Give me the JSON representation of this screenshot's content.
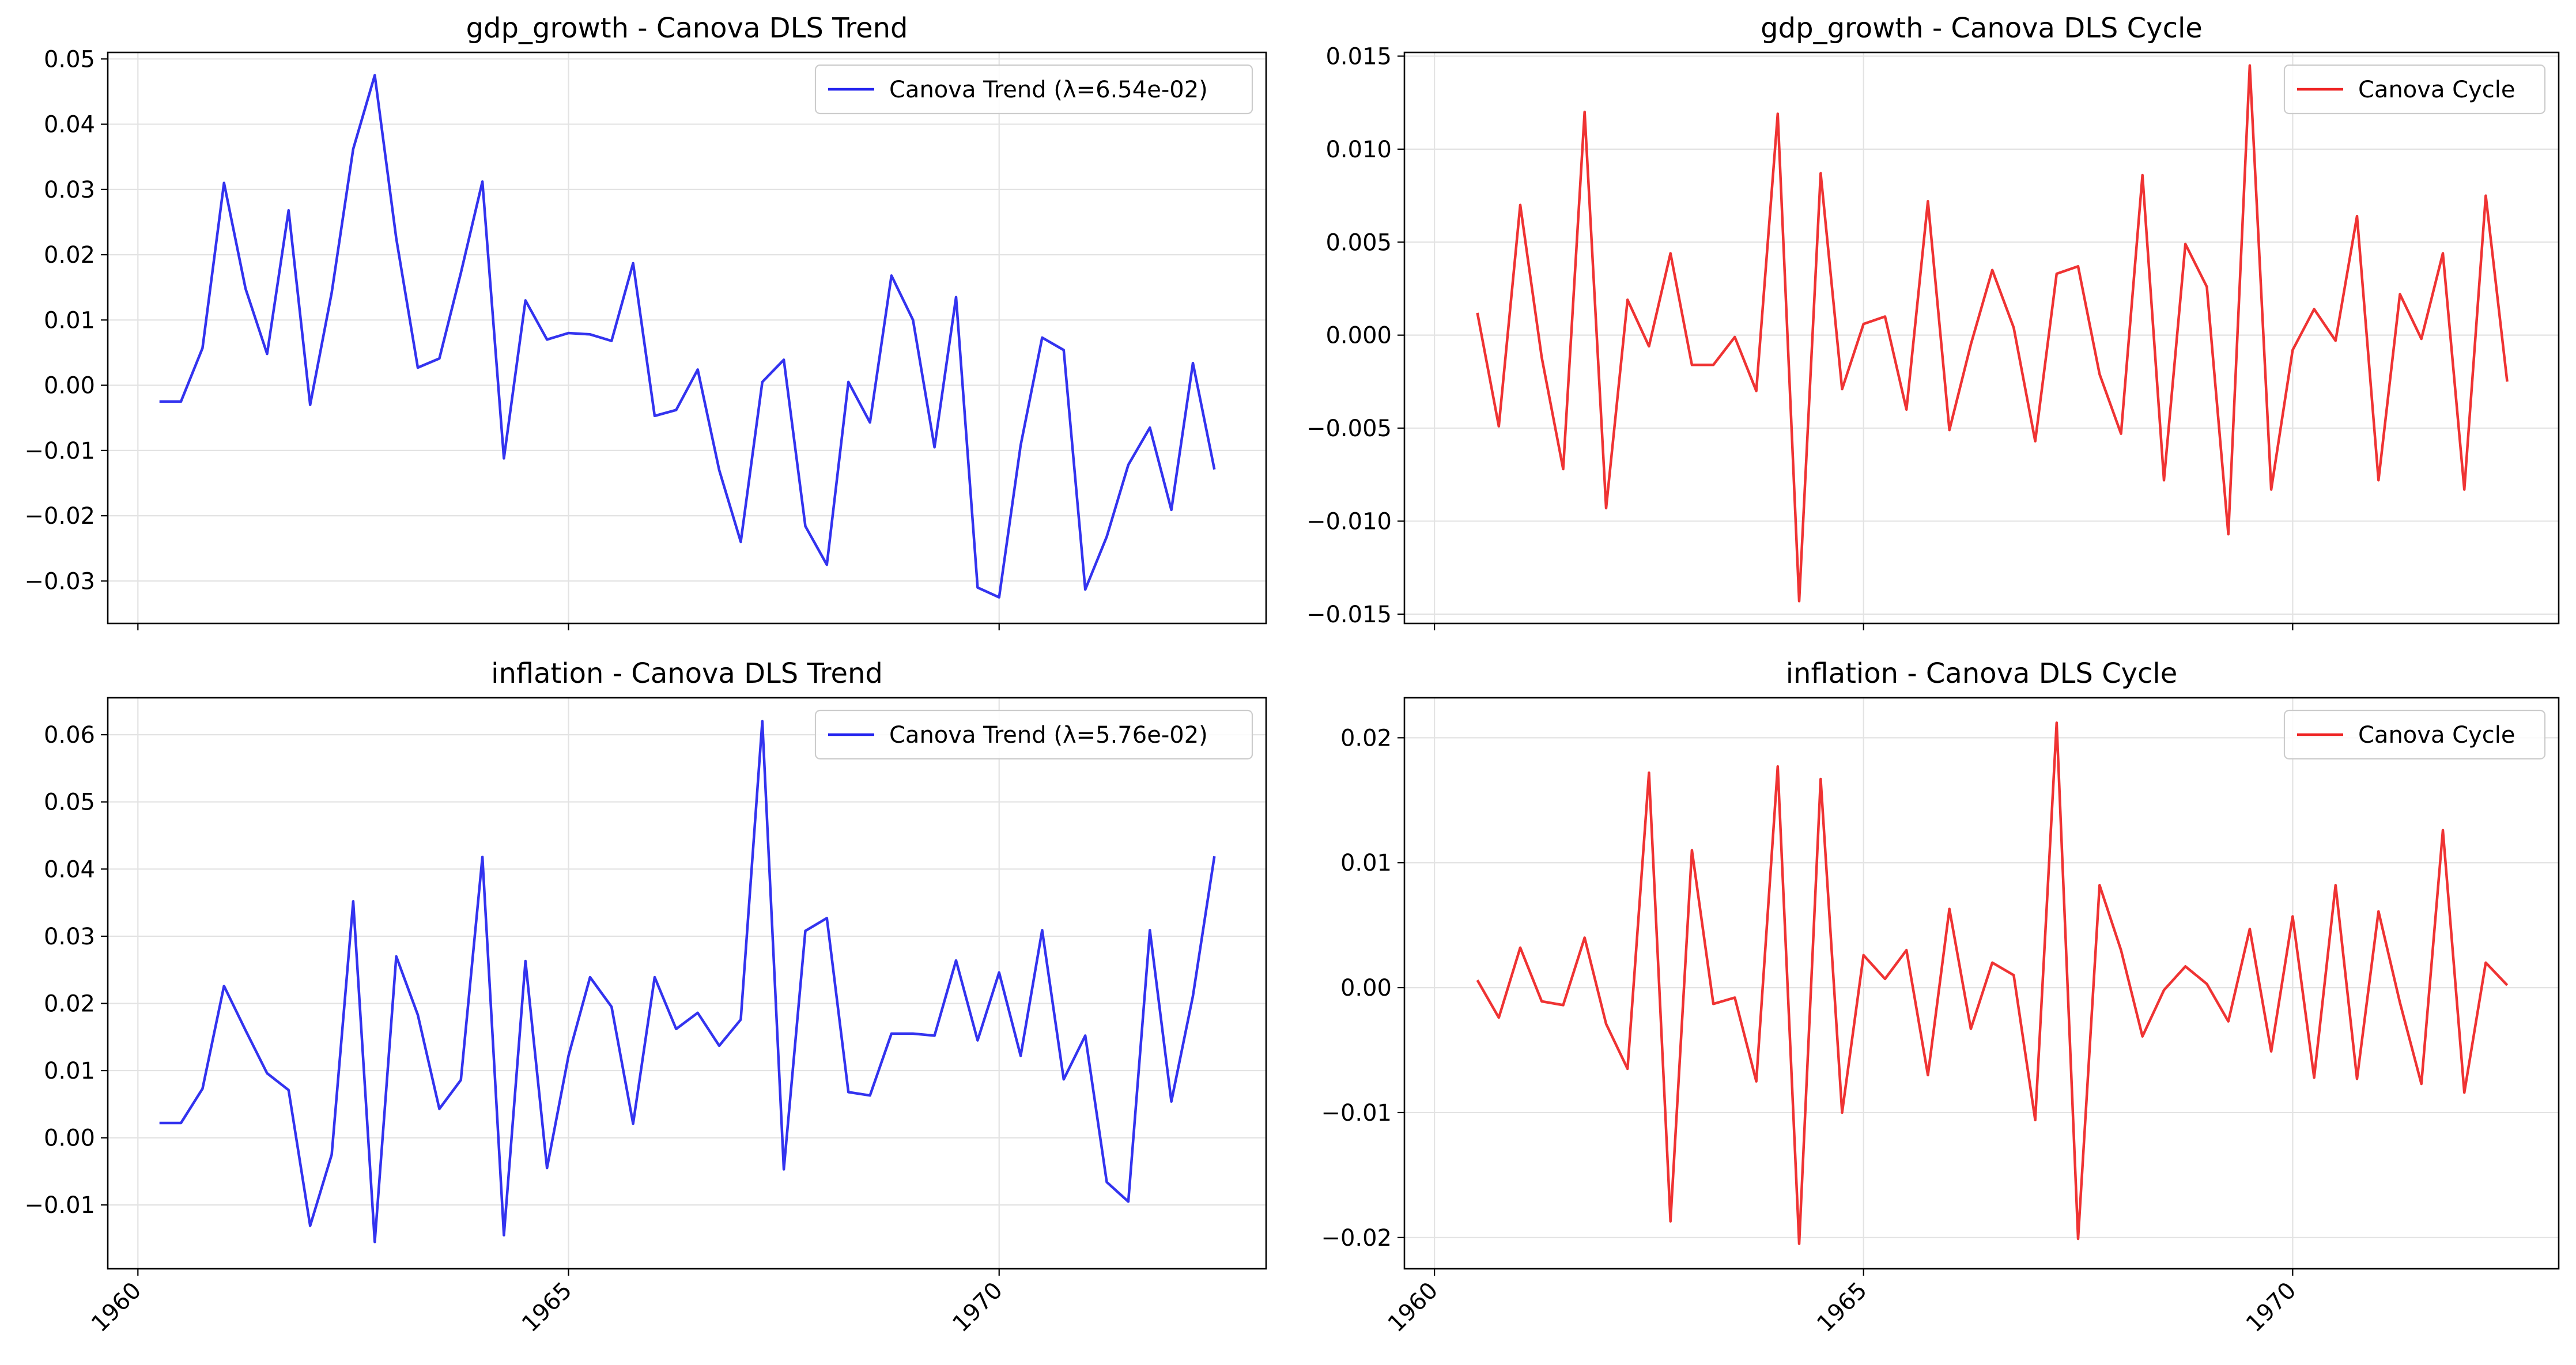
{
  "chart_data": [
    {
      "type": "line",
      "title": "gdp_growth - Canova DLS Trend",
      "x_tick_labels": [
        "1960",
        "1965",
        "1970"
      ],
      "x_ticks": [
        1960,
        1965,
        1970
      ],
      "xlim": [
        1959.65,
        1973.1
      ],
      "ylim": [
        -0.0365,
        0.051
      ],
      "y_ticks": [
        -0.03,
        -0.02,
        -0.01,
        0.0,
        0.01,
        0.02,
        0.03,
        0.04,
        0.05
      ],
      "y_tick_labels": [
        "−0.03",
        "−0.02",
        "−0.01",
        "0.00",
        "0.01",
        "0.02",
        "0.03",
        "0.04",
        "0.05"
      ],
      "grid": true,
      "legend_position": "top-right",
      "show_x_tick_labels": false,
      "series": [
        {
          "name": "Canova Trend (λ=6.54e-02)",
          "color": "#2222ee",
          "x": [
            1960.25,
            1960.5,
            1960.75,
            1961.0,
            1961.25,
            1961.5,
            1961.75,
            1962.0,
            1962.25,
            1962.5,
            1962.75,
            1963.0,
            1963.25,
            1963.5,
            1963.75,
            1964.0,
            1964.25,
            1964.5,
            1964.75,
            1965.0,
            1965.25,
            1965.5,
            1965.75,
            1966.0,
            1966.25,
            1966.5,
            1966.75,
            1967.0,
            1967.25,
            1967.5,
            1967.75,
            1968.0,
            1968.25,
            1968.5,
            1968.75,
            1969.0,
            1969.25,
            1969.5,
            1969.75,
            1970.0,
            1970.25,
            1970.5,
            1970.75,
            1971.0,
            1971.25,
            1971.5,
            1971.75,
            1972.0,
            1972.25,
            1972.5
          ],
          "y": [
            -0.0025,
            -0.0025,
            0.0057,
            0.031,
            0.0148,
            0.0048,
            0.0268,
            -0.003,
            0.0142,
            0.0362,
            0.0475,
            0.0225,
            0.0027,
            0.0041,
            0.0172,
            0.0312,
            -0.0112,
            0.013,
            0.007,
            0.008,
            0.0078,
            0.0068,
            0.0187,
            -0.0047,
            -0.0038,
            0.0024,
            -0.013,
            -0.024,
            0.0005,
            0.0039,
            -0.0216,
            -0.0275,
            0.0005,
            -0.0057,
            0.0168,
            0.01,
            -0.0095,
            0.0135,
            -0.031,
            -0.0325,
            -0.0092,
            0.0073,
            0.0054,
            -0.0313,
            -0.0232,
            -0.0122,
            -0.0065,
            -0.0191,
            0.0034,
            -0.0129
          ]
        }
      ]
    },
    {
      "type": "line",
      "title": "gdp_growth - Canova DLS Cycle",
      "x_tick_labels": [
        "1960",
        "1965",
        "1970"
      ],
      "x_ticks": [
        1960,
        1965,
        1970
      ],
      "xlim": [
        1959.65,
        1973.1
      ],
      "ylim": [
        -0.0155,
        0.0152
      ],
      "y_ticks": [
        -0.015,
        -0.01,
        -0.005,
        0.0,
        0.005,
        0.01,
        0.015
      ],
      "y_tick_labels": [
        "−0.015",
        "−0.010",
        "−0.005",
        "0.000",
        "0.005",
        "0.010",
        "0.015"
      ],
      "grid": true,
      "legend_position": "top-right",
      "show_x_tick_labels": false,
      "series": [
        {
          "name": "Canova Cycle",
          "color": "#ee2222",
          "x": [
            1960.5,
            1960.75,
            1961.0,
            1961.25,
            1961.5,
            1961.75,
            1962.0,
            1962.25,
            1962.5,
            1962.75,
            1963.0,
            1963.25,
            1963.5,
            1963.75,
            1964.0,
            1964.25,
            1964.5,
            1964.75,
            1965.0,
            1965.25,
            1965.5,
            1965.75,
            1966.0,
            1966.25,
            1966.5,
            1966.75,
            1967.0,
            1967.25,
            1967.5,
            1967.75,
            1968.0,
            1968.25,
            1968.5,
            1968.75,
            1969.0,
            1969.25,
            1969.5,
            1969.75,
            1970.0,
            1970.25,
            1970.5,
            1970.75,
            1971.0,
            1971.25,
            1971.5,
            1971.75,
            1972.0,
            1972.25,
            1972.5
          ],
          "y": [
            0.0012,
            -0.0049,
            0.007,
            -0.0012,
            -0.0072,
            0.012,
            -0.0093,
            0.0019,
            -0.0006,
            0.0044,
            -0.0016,
            -0.0016,
            -0.0001,
            -0.003,
            0.0119,
            -0.0143,
            0.0087,
            -0.0029,
            0.0006,
            0.001,
            -0.004,
            0.0072,
            -0.0051,
            -0.0005,
            0.0035,
            0.0004,
            -0.0057,
            0.0033,
            0.0037,
            -0.0021,
            -0.0053,
            0.0086,
            -0.0078,
            0.0049,
            0.0026,
            -0.0107,
            0.0145,
            -0.0083,
            -0.0008,
            0.0014,
            -0.0003,
            0.0064,
            -0.0078,
            0.0022,
            -0.0002,
            0.0044,
            -0.0083,
            0.0075,
            -0.0025
          ]
        }
      ]
    },
    {
      "type": "line",
      "title": "inflation - Canova DLS Trend",
      "x_tick_labels": [
        "1960",
        "1965",
        "1970"
      ],
      "x_ticks": [
        1960,
        1965,
        1970
      ],
      "xlim": [
        1959.65,
        1973.1
      ],
      "ylim": [
        -0.0195,
        0.0655
      ],
      "y_ticks": [
        -0.01,
        0.0,
        0.01,
        0.02,
        0.03,
        0.04,
        0.05,
        0.06
      ],
      "y_tick_labels": [
        "−0.01",
        "0.00",
        "0.01",
        "0.02",
        "0.03",
        "0.04",
        "0.05",
        "0.06"
      ],
      "grid": true,
      "legend_position": "top-right",
      "show_x_tick_labels": true,
      "series": [
        {
          "name": "Canova Trend (λ=5.76e-02)",
          "color": "#2222ee",
          "x": [
            1960.25,
            1960.5,
            1960.75,
            1961.0,
            1961.25,
            1961.5,
            1961.75,
            1962.0,
            1962.25,
            1962.5,
            1962.75,
            1963.0,
            1963.25,
            1963.5,
            1963.75,
            1964.0,
            1964.25,
            1964.5,
            1964.75,
            1965.0,
            1965.25,
            1965.5,
            1965.75,
            1966.0,
            1966.25,
            1966.5,
            1966.75,
            1967.0,
            1967.25,
            1967.5,
            1967.75,
            1968.0,
            1968.25,
            1968.5,
            1968.75,
            1969.0,
            1969.25,
            1969.5,
            1969.75,
            1970.0,
            1970.25,
            1970.5,
            1970.75,
            1971.0,
            1971.25,
            1971.5,
            1971.75,
            1972.0,
            1972.25,
            1972.5
          ],
          "y": [
            0.0022,
            0.0022,
            0.0073,
            0.0226,
            0.016,
            0.0096,
            0.0071,
            -0.0131,
            -0.0025,
            0.0352,
            -0.0155,
            0.027,
            0.0183,
            0.0043,
            0.0086,
            0.0418,
            -0.0145,
            0.0263,
            -0.0045,
            0.0122,
            0.0239,
            0.0195,
            0.0021,
            0.0239,
            0.0162,
            0.0186,
            0.0137,
            0.0176,
            0.062,
            -0.0047,
            0.0308,
            0.0327,
            0.0068,
            0.0063,
            0.0155,
            0.0155,
            0.0152,
            0.0264,
            0.0145,
            0.0246,
            0.0122,
            0.0309,
            0.0087,
            0.0152,
            -0.0066,
            -0.0095,
            0.0309,
            0.0054,
            0.0211,
            0.0419
          ]
        }
      ]
    },
    {
      "type": "line",
      "title": "inflation - Canova DLS Cycle",
      "x_tick_labels": [
        "1960",
        "1965",
        "1970"
      ],
      "x_ticks": [
        1960,
        1965,
        1970
      ],
      "xlim": [
        1959.65,
        1973.1
      ],
      "ylim": [
        -0.0225,
        0.0232
      ],
      "y_ticks": [
        -0.02,
        -0.01,
        0.0,
        0.01,
        0.02
      ],
      "y_tick_labels": [
        "−0.02",
        "−0.01",
        "0.00",
        "0.01",
        "0.02"
      ],
      "grid": true,
      "legend_position": "top-right",
      "show_x_tick_labels": true,
      "series": [
        {
          "name": "Canova Cycle",
          "color": "#ee2222",
          "x": [
            1960.5,
            1960.75,
            1961.0,
            1961.25,
            1961.5,
            1961.75,
            1962.0,
            1962.25,
            1962.5,
            1962.75,
            1963.0,
            1963.25,
            1963.5,
            1963.75,
            1964.0,
            1964.25,
            1964.5,
            1964.75,
            1965.0,
            1965.25,
            1965.5,
            1965.75,
            1966.0,
            1966.25,
            1966.5,
            1966.75,
            1967.0,
            1967.25,
            1967.5,
            1967.75,
            1968.0,
            1968.25,
            1968.5,
            1968.75,
            1969.0,
            1969.25,
            1969.5,
            1969.75,
            1970.0,
            1970.25,
            1970.5,
            1970.75,
            1971.0,
            1971.25,
            1971.5,
            1971.75,
            1972.0,
            1972.25,
            1972.5
          ],
          "y": [
            0.0006,
            -0.0024,
            0.0032,
            -0.0011,
            -0.0014,
            0.004,
            -0.0029,
            -0.0065,
            0.0172,
            -0.0187,
            0.011,
            -0.0013,
            -0.0008,
            -0.0075,
            0.0177,
            -0.0205,
            0.0167,
            -0.01,
            0.0026,
            0.0007,
            0.003,
            -0.007,
            0.0063,
            -0.0033,
            0.002,
            0.001,
            -0.0106,
            0.0212,
            -0.0201,
            0.0082,
            0.003,
            -0.0039,
            -0.0002,
            0.0017,
            0.0003,
            -0.0027,
            0.0047,
            -0.0051,
            0.0057,
            -0.0072,
            0.0082,
            -0.0073,
            0.0061,
            -0.0012,
            -0.0077,
            0.0126,
            -0.0084,
            0.002,
            0.0002
          ]
        }
      ]
    }
  ]
}
